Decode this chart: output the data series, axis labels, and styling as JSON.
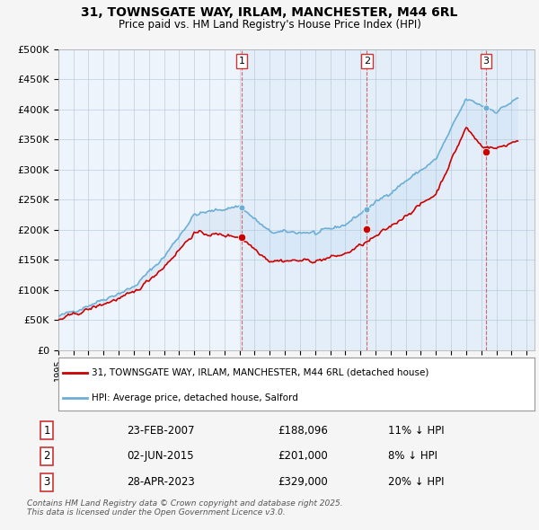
{
  "title1": "31, TOWNSGATE WAY, IRLAM, MANCHESTER, M44 6RL",
  "title2": "Price paid vs. HM Land Registry's House Price Index (HPI)",
  "legend_red": "31, TOWNSGATE WAY, IRLAM, MANCHESTER, M44 6RL (detached house)",
  "legend_blue": "HPI: Average price, detached house, Salford",
  "transactions": [
    {
      "num": 1,
      "date": "23-FEB-2007",
      "price": 188096,
      "pct": "11%",
      "dir": "↓"
    },
    {
      "num": 2,
      "date": "02-JUN-2015",
      "price": 201000,
      "pct": "8%",
      "dir": "↓"
    },
    {
      "num": 3,
      "date": "28-APR-2023",
      "price": 329000,
      "pct": "20%",
      "dir": "↓"
    }
  ],
  "footer": "Contains HM Land Registry data © Crown copyright and database right 2025.\nThis data is licensed under the Open Government Licence v3.0.",
  "ylim": [
    0,
    500000
  ],
  "yticks": [
    0,
    50000,
    100000,
    150000,
    200000,
    250000,
    300000,
    350000,
    400000,
    450000,
    500000
  ],
  "ytick_labels": [
    "£0",
    "£50K",
    "£100K",
    "£150K",
    "£200K",
    "£250K",
    "£300K",
    "£350K",
    "£400K",
    "£450K",
    "£500K"
  ],
  "red_color": "#cc0000",
  "blue_fill_color": "#d0e4f5",
  "blue_line_color": "#6baed6",
  "vline_color": "#cc3333",
  "t1_year": 2007.14,
  "t2_year": 2015.42,
  "t3_year": 2023.32,
  "trans_prices": [
    188096,
    201000,
    329000
  ],
  "xmin": 1995.0,
  "xmax": 2026.5
}
